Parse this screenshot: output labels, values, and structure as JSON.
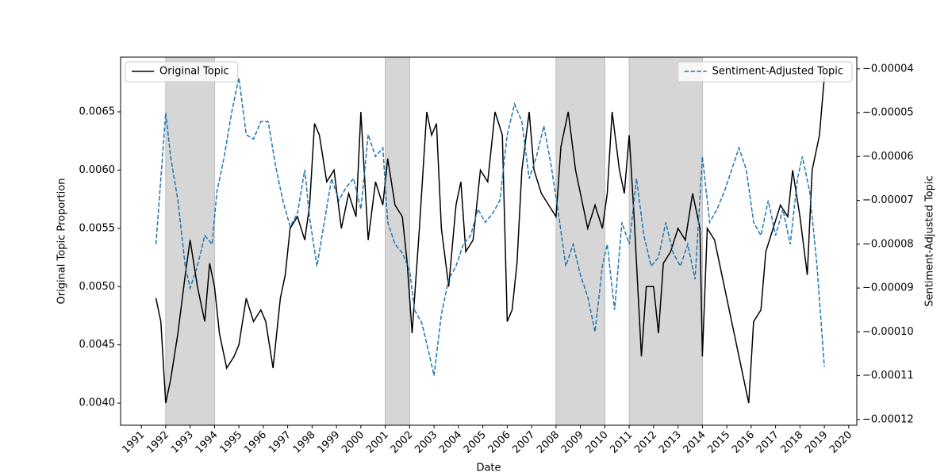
{
  "chart_data": {
    "type": "line",
    "xlabel": "Date",
    "ylabel": "Original Topic Proportion",
    "y2label": "Sentiment-Adjusted Topic",
    "xlim": [
      1990.15,
      2020.33
    ],
    "xticks": [
      1991,
      1992,
      1993,
      1994,
      1995,
      1996,
      1997,
      1998,
      1999,
      2000,
      2001,
      2002,
      2003,
      2004,
      2005,
      2006,
      2007,
      2008,
      2009,
      2010,
      2011,
      2012,
      2013,
      2014,
      2015,
      2016,
      2017,
      2018,
      2019,
      2020
    ],
    "ylim": [
      0.00381,
      0.00697
    ],
    "yticks": [
      {
        "value": 0.004,
        "label": "0.0040"
      },
      {
        "value": 0.0045,
        "label": "0.0045"
      },
      {
        "value": 0.005,
        "label": "0.0050"
      },
      {
        "value": 0.0055,
        "label": "0.0055"
      },
      {
        "value": 0.006,
        "label": "0.0060"
      },
      {
        "value": 0.0065,
        "label": "0.0065"
      }
    ],
    "y2lim": [
      -0.0001213,
      -3.73e-05
    ],
    "y2ticks": [
      {
        "value": -0.00012,
        "label": "−0.00012"
      },
      {
        "value": -0.00011,
        "label": "−0.00011"
      },
      {
        "value": -0.0001,
        "label": "−0.00010"
      },
      {
        "value": -9e-05,
        "label": "−0.00009"
      },
      {
        "value": -8e-05,
        "label": "−0.00008"
      },
      {
        "value": -7e-05,
        "label": "−0.00007"
      },
      {
        "value": -6e-05,
        "label": "−0.00006"
      },
      {
        "value": -5e-05,
        "label": "−0.00005"
      },
      {
        "value": -4e-05,
        "label": "−0.00004"
      }
    ],
    "shaded_periods": [
      [
        1992,
        1994
      ],
      [
        2001,
        2002
      ],
      [
        2008,
        2010
      ],
      [
        2011,
        2014
      ]
    ],
    "shade_color": "#d6d6d6",
    "series": [
      {
        "name": "Original Topic",
        "color": "#000000",
        "dash": false,
        "axis": "y",
        "legend": "upper left",
        "x": [
          1991.6,
          1991.8,
          1992.0,
          1992.2,
          1992.5,
          1992.8,
          1993.0,
          1993.3,
          1993.6,
          1993.8,
          1994.0,
          1994.2,
          1994.5,
          1994.8,
          1995.0,
          1995.3,
          1995.6,
          1995.9,
          1996.1,
          1996.4,
          1996.7,
          1996.9,
          1997.1,
          1997.4,
          1997.7,
          1997.9,
          1998.1,
          1998.3,
          1998.6,
          1998.9,
          1999.2,
          1999.5,
          1999.8,
          2000.0,
          2000.3,
          2000.6,
          2000.9,
          2001.1,
          2001.4,
          2001.7,
          2001.9,
          2002.1,
          2002.4,
          2002.7,
          2002.9,
          2003.1,
          2003.3,
          2003.6,
          2003.9,
          2004.1,
          2004.3,
          2004.6,
          2004.9,
          2005.2,
          2005.5,
          2005.8,
          2006.0,
          2006.2,
          2006.4,
          2006.6,
          2006.9,
          2007.1,
          2007.4,
          2007.7,
          2008.0,
          2008.2,
          2008.5,
          2008.8,
          2009.0,
          2009.3,
          2009.6,
          2009.9,
          2010.1,
          2010.3,
          2010.6,
          2010.8,
          2011.0,
          2011.2,
          2011.5,
          2011.7,
          2012.0,
          2012.2,
          2012.4,
          2012.7,
          2013.0,
          2013.3,
          2013.6,
          2013.9,
          2014.0,
          2014.2,
          2014.5,
          2014.8,
          2015.0,
          2015.3,
          2015.6,
          2015.9,
          2016.1,
          2016.4,
          2016.6,
          2016.9,
          2017.2,
          2017.5,
          2017.7,
          2018.0,
          2018.3,
          2018.5,
          2018.8,
          2019.0
        ],
        "values": [
          0.0049,
          0.0047,
          0.004,
          0.0042,
          0.0046,
          0.0051,
          0.0054,
          0.005,
          0.0047,
          0.0052,
          0.005,
          0.0046,
          0.0043,
          0.0044,
          0.0045,
          0.0049,
          0.0047,
          0.0048,
          0.0047,
          0.0043,
          0.0049,
          0.0051,
          0.0055,
          0.0056,
          0.0054,
          0.0057,
          0.0064,
          0.0063,
          0.0059,
          0.006,
          0.0055,
          0.0058,
          0.0056,
          0.0065,
          0.0054,
          0.0059,
          0.0057,
          0.0061,
          0.0057,
          0.0056,
          0.0052,
          0.0046,
          0.0055,
          0.0065,
          0.0063,
          0.0064,
          0.0055,
          0.005,
          0.0057,
          0.0059,
          0.0053,
          0.0054,
          0.006,
          0.0059,
          0.0065,
          0.0063,
          0.0047,
          0.0048,
          0.0052,
          0.006,
          0.0065,
          0.006,
          0.0058,
          0.0057,
          0.0056,
          0.0062,
          0.0065,
          0.006,
          0.0058,
          0.0055,
          0.0057,
          0.0055,
          0.0058,
          0.0065,
          0.006,
          0.0058,
          0.0063,
          0.0056,
          0.0044,
          0.005,
          0.005,
          0.0046,
          0.0052,
          0.0053,
          0.0055,
          0.0054,
          0.0058,
          0.0055,
          0.0044,
          0.0055,
          0.0054,
          0.0051,
          0.0049,
          0.0046,
          0.0043,
          0.004,
          0.0047,
          0.0048,
          0.0053,
          0.0055,
          0.0057,
          0.0056,
          0.006,
          0.0056,
          0.0051,
          0.006,
          0.0063,
          0.0068
        ]
      },
      {
        "name": "Sentiment-Adjusted Topic",
        "color": "#1f77b4",
        "dash": true,
        "axis": "y2",
        "legend": "upper right",
        "x": [
          1991.6,
          1991.8,
          1992.0,
          1992.2,
          1992.5,
          1992.8,
          1993.0,
          1993.3,
          1993.6,
          1993.9,
          1994.1,
          1994.4,
          1994.7,
          1995.0,
          1995.3,
          1995.6,
          1995.9,
          1996.2,
          1996.5,
          1996.8,
          1997.1,
          1997.4,
          1997.7,
          1997.9,
          1998.2,
          1998.5,
          1998.8,
          1999.1,
          1999.4,
          1999.7,
          2000.0,
          2000.3,
          2000.6,
          2000.9,
          2001.1,
          2001.4,
          2001.7,
          2002.0,
          2002.2,
          2002.5,
          2002.8,
          2003.0,
          2003.3,
          2003.6,
          2003.9,
          2004.2,
          2004.5,
          2004.8,
          2005.1,
          2005.4,
          2005.7,
          2006.0,
          2006.3,
          2006.6,
          2006.9,
          2007.2,
          2007.5,
          2007.8,
          2008.1,
          2008.4,
          2008.7,
          2009.0,
          2009.3,
          2009.6,
          2009.9,
          2010.1,
          2010.4,
          2010.7,
          2011.0,
          2011.3,
          2011.6,
          2011.9,
          2012.2,
          2012.5,
          2012.8,
          2013.1,
          2013.4,
          2013.7,
          2014.0,
          2014.3,
          2014.6,
          2014.9,
          2015.2,
          2015.5,
          2015.8,
          2016.1,
          2016.4,
          2016.7,
          2017.0,
          2017.3,
          2017.6,
          2017.9,
          2018.1,
          2018.4,
          2018.7,
          2019.0
        ],
        "values": [
          -8e-05,
          -6.5e-05,
          -5e-05,
          -6e-05,
          -7e-05,
          -8.5e-05,
          -9e-05,
          -8.5e-05,
          -7.8e-05,
          -8e-05,
          -6.8e-05,
          -6e-05,
          -5e-05,
          -4.2e-05,
          -5.5e-05,
          -5.6e-05,
          -5.2e-05,
          -5.2e-05,
          -6.2e-05,
          -7e-05,
          -7.6e-05,
          -7.3e-05,
          -6.3e-05,
          -7.4e-05,
          -8.5e-05,
          -7.5e-05,
          -6.5e-05,
          -7e-05,
          -6.7e-05,
          -6.5e-05,
          -7.2e-05,
          -5.5e-05,
          -6e-05,
          -5.8e-05,
          -7.5e-05,
          -8e-05,
          -8.2e-05,
          -8.6e-05,
          -9.5e-05,
          -9.8e-05,
          -0.000105,
          -0.00011,
          -9.6e-05,
          -8.8e-05,
          -8.5e-05,
          -8e-05,
          -7.8e-05,
          -7.2e-05,
          -7.5e-05,
          -7.3e-05,
          -7e-05,
          -5.5e-05,
          -4.8e-05,
          -5.2e-05,
          -6.5e-05,
          -6e-05,
          -5.3e-05,
          -6.2e-05,
          -7.3e-05,
          -8.5e-05,
          -8e-05,
          -8.7e-05,
          -9.2e-05,
          -0.0001,
          -8.5e-05,
          -8e-05,
          -9.5e-05,
          -7.5e-05,
          -8e-05,
          -6.5e-05,
          -7.8e-05,
          -8.5e-05,
          -8.3e-05,
          -7.5e-05,
          -8.2e-05,
          -8.5e-05,
          -8e-05,
          -8.8e-05,
          -6e-05,
          -7.5e-05,
          -7.2e-05,
          -6.8e-05,
          -6.3e-05,
          -5.8e-05,
          -6.3e-05,
          -7.5e-05,
          -7.8e-05,
          -7e-05,
          -7.8e-05,
          -7.2e-05,
          -8e-05,
          -6.5e-05,
          -6e-05,
          -6.8e-05,
          -8.5e-05,
          -0.000108
        ]
      }
    ]
  }
}
